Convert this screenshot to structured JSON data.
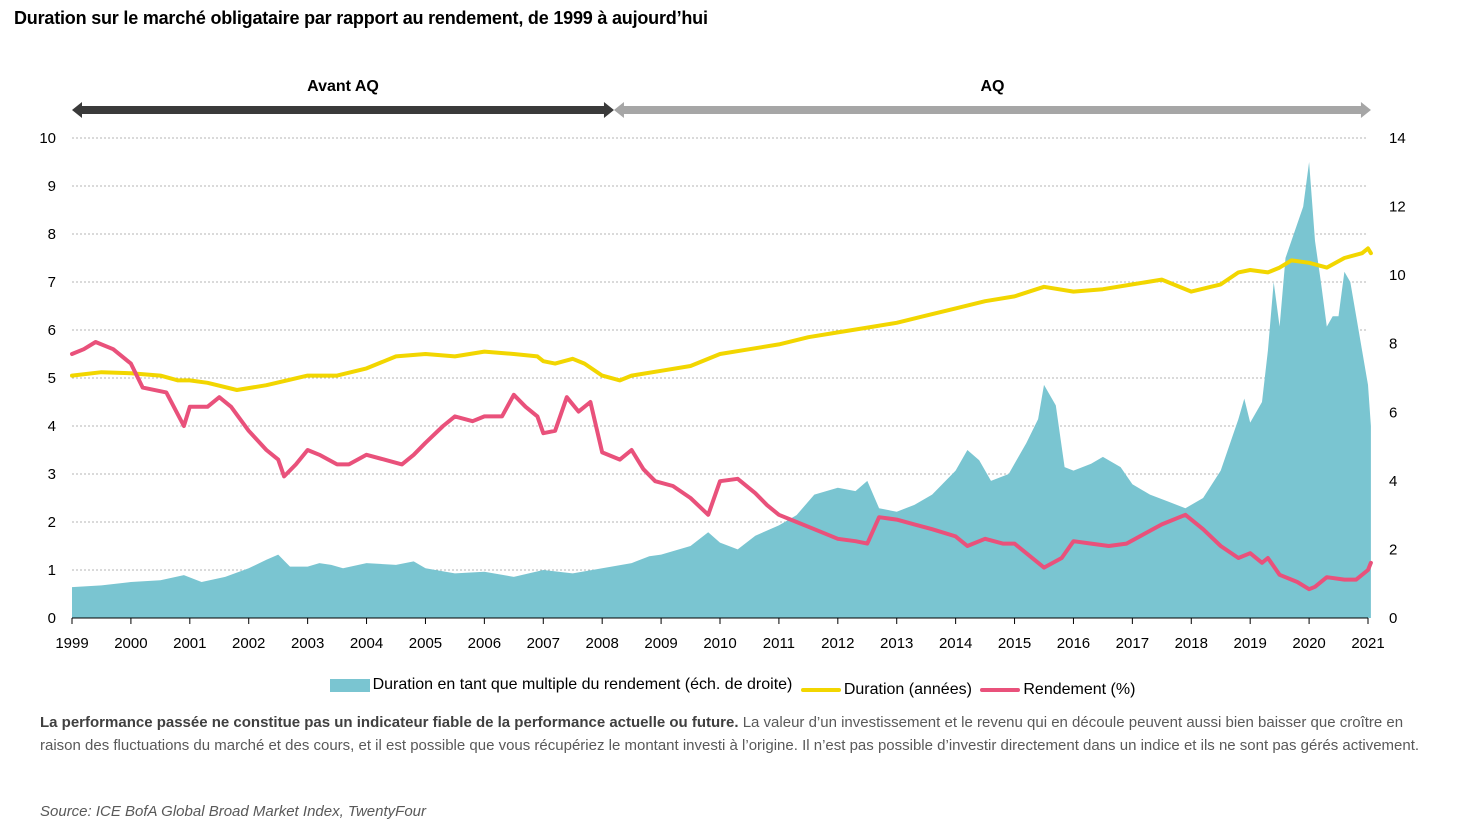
{
  "title": "Duration sur le marché obligataire par rapport au rendement, de 1999 à aujourd’hui",
  "eras": [
    {
      "label": "Avant AQ",
      "start": 1999.0,
      "end": 2008.2,
      "color": "#3a3a3a"
    },
    {
      "label": "AQ",
      "start": 2008.2,
      "end": 2021.05,
      "color": "#a6a6a6"
    }
  ],
  "legend": [
    {
      "label": "Duration en tant que multiple du rendement (éch. de droite)",
      "kind": "area",
      "color": "#7ac5d1"
    },
    {
      "label": "Duration (années)",
      "kind": "line",
      "color": "#f2d600"
    },
    {
      "label": "Rendement (%)",
      "kind": "line",
      "color": "#e9517b"
    }
  ],
  "disclaimer": {
    "bold": "La performance passée ne constitue pas un indicateur fiable de la performance actuelle ou future.",
    "text": " La valeur d’un investissement et le revenu qui en découle peuvent aussi bien baisser que croître en raison des fluctuations du marché et des cours, et il est possible que vous récupériez le montant investi à l’origine. Il n’est pas possible d’investir directement dans un indice et ils ne sont pas gérés activement."
  },
  "source": "Source: ICE BofA Global Broad Market Index, TwentyFour",
  "chart_data": {
    "type": "line",
    "x_ticks": [
      "1999",
      "2000",
      "2001",
      "2002",
      "2003",
      "2004",
      "2005",
      "2006",
      "2007",
      "2008",
      "2009",
      "2010",
      "2011",
      "2012",
      "2013",
      "2014",
      "2015",
      "2016",
      "2017",
      "2018",
      "2019",
      "2020",
      "2021"
    ],
    "y_left": {
      "min": 0,
      "max": 10,
      "ticks": [
        0,
        1,
        2,
        3,
        4,
        5,
        6,
        7,
        8,
        9,
        10
      ]
    },
    "y_right": {
      "min": 0,
      "max": 14,
      "ticks": [
        0,
        2,
        4,
        6,
        8,
        10,
        12,
        14
      ]
    },
    "grid": true,
    "legend_position": "bottom",
    "series": [
      {
        "name": "Duration en tant que multiple du rendement (éch. de droite)",
        "type": "area",
        "axis": "right",
        "color": "#7ac5d1",
        "points": [
          [
            1999.0,
            0.9
          ],
          [
            1999.5,
            0.95
          ],
          [
            2000.0,
            1.05
          ],
          [
            2000.5,
            1.1
          ],
          [
            2000.9,
            1.25
          ],
          [
            2001.2,
            1.05
          ],
          [
            2001.6,
            1.2
          ],
          [
            2002.0,
            1.45
          ],
          [
            2002.3,
            1.7
          ],
          [
            2002.5,
            1.85
          ],
          [
            2002.7,
            1.5
          ],
          [
            2003.0,
            1.5
          ],
          [
            2003.2,
            1.6
          ],
          [
            2003.4,
            1.55
          ],
          [
            2003.6,
            1.45
          ],
          [
            2004.0,
            1.6
          ],
          [
            2004.5,
            1.55
          ],
          [
            2004.8,
            1.65
          ],
          [
            2005.0,
            1.45
          ],
          [
            2005.5,
            1.3
          ],
          [
            2006.0,
            1.35
          ],
          [
            2006.5,
            1.2
          ],
          [
            2007.0,
            1.4
          ],
          [
            2007.5,
            1.3
          ],
          [
            2008.0,
            1.45
          ],
          [
            2008.5,
            1.6
          ],
          [
            2008.8,
            1.8
          ],
          [
            2009.0,
            1.85
          ],
          [
            2009.5,
            2.1
          ],
          [
            2009.8,
            2.5
          ],
          [
            2010.0,
            2.2
          ],
          [
            2010.3,
            2.0
          ],
          [
            2010.6,
            2.4
          ],
          [
            2011.0,
            2.7
          ],
          [
            2011.3,
            3.0
          ],
          [
            2011.6,
            3.6
          ],
          [
            2012.0,
            3.8
          ],
          [
            2012.3,
            3.7
          ],
          [
            2012.5,
            4.0
          ],
          [
            2012.7,
            3.2
          ],
          [
            2013.0,
            3.1
          ],
          [
            2013.3,
            3.3
          ],
          [
            2013.6,
            3.6
          ],
          [
            2014.0,
            4.3
          ],
          [
            2014.2,
            4.9
          ],
          [
            2014.4,
            4.6
          ],
          [
            2014.6,
            4.0
          ],
          [
            2014.9,
            4.2
          ],
          [
            2015.0,
            4.5
          ],
          [
            2015.2,
            5.1
          ],
          [
            2015.4,
            5.8
          ],
          [
            2015.5,
            6.8
          ],
          [
            2015.7,
            6.2
          ],
          [
            2015.85,
            4.4
          ],
          [
            2016.0,
            4.3
          ],
          [
            2016.3,
            4.5
          ],
          [
            2016.5,
            4.7
          ],
          [
            2016.8,
            4.4
          ],
          [
            2017.0,
            3.9
          ],
          [
            2017.3,
            3.6
          ],
          [
            2017.6,
            3.4
          ],
          [
            2017.9,
            3.2
          ],
          [
            2018.2,
            3.5
          ],
          [
            2018.5,
            4.3
          ],
          [
            2018.8,
            5.8
          ],
          [
            2018.9,
            6.4
          ],
          [
            2019.0,
            5.7
          ],
          [
            2019.2,
            6.3
          ],
          [
            2019.3,
            7.8
          ],
          [
            2019.4,
            9.8
          ],
          [
            2019.5,
            8.5
          ],
          [
            2019.6,
            10.5
          ],
          [
            2019.7,
            11.0
          ],
          [
            2019.8,
            11.5
          ],
          [
            2019.9,
            12.0
          ],
          [
            2020.0,
            13.3
          ],
          [
            2020.1,
            11.0
          ],
          [
            2020.2,
            9.8
          ],
          [
            2020.3,
            8.5
          ],
          [
            2020.4,
            8.8
          ],
          [
            2020.5,
            8.8
          ],
          [
            2020.6,
            10.1
          ],
          [
            2020.7,
            9.8
          ],
          [
            2020.8,
            8.8
          ],
          [
            2020.9,
            7.8
          ],
          [
            2021.0,
            6.8
          ],
          [
            2021.05,
            5.6
          ]
        ]
      },
      {
        "name": "Duration (années)",
        "type": "line",
        "axis": "left",
        "color": "#f2d600",
        "points": [
          [
            1999.0,
            5.05
          ],
          [
            1999.5,
            5.12
          ],
          [
            2000.0,
            5.1
          ],
          [
            2000.5,
            5.05
          ],
          [
            2000.8,
            4.95
          ],
          [
            2001.0,
            4.95
          ],
          [
            2001.3,
            4.9
          ],
          [
            2001.8,
            4.75
          ],
          [
            2002.3,
            4.85
          ],
          [
            2003.0,
            5.05
          ],
          [
            2003.5,
            5.05
          ],
          [
            2004.0,
            5.2
          ],
          [
            2004.5,
            5.45
          ],
          [
            2005.0,
            5.5
          ],
          [
            2005.5,
            5.45
          ],
          [
            2006.0,
            5.55
          ],
          [
            2006.5,
            5.5
          ],
          [
            2006.9,
            5.45
          ],
          [
            2007.0,
            5.35
          ],
          [
            2007.2,
            5.3
          ],
          [
            2007.5,
            5.4
          ],
          [
            2007.7,
            5.3
          ],
          [
            2008.0,
            5.05
          ],
          [
            2008.3,
            4.95
          ],
          [
            2008.5,
            5.05
          ],
          [
            2009.0,
            5.15
          ],
          [
            2009.5,
            5.25
          ],
          [
            2010.0,
            5.5
          ],
          [
            2010.5,
            5.6
          ],
          [
            2011.0,
            5.7
          ],
          [
            2011.5,
            5.85
          ],
          [
            2012.0,
            5.95
          ],
          [
            2012.5,
            6.05
          ],
          [
            2013.0,
            6.15
          ],
          [
            2013.5,
            6.3
          ],
          [
            2014.0,
            6.45
          ],
          [
            2014.5,
            6.6
          ],
          [
            2015.0,
            6.7
          ],
          [
            2015.5,
            6.9
          ],
          [
            2016.0,
            6.8
          ],
          [
            2016.5,
            6.85
          ],
          [
            2017.0,
            6.95
          ],
          [
            2017.5,
            7.05
          ],
          [
            2018.0,
            6.8
          ],
          [
            2018.5,
            6.95
          ],
          [
            2018.8,
            7.2
          ],
          [
            2019.0,
            7.25
          ],
          [
            2019.3,
            7.2
          ],
          [
            2019.5,
            7.3
          ],
          [
            2019.7,
            7.45
          ],
          [
            2020.0,
            7.4
          ],
          [
            2020.3,
            7.3
          ],
          [
            2020.6,
            7.5
          ],
          [
            2020.9,
            7.6
          ],
          [
            2021.0,
            7.7
          ],
          [
            2021.05,
            7.6
          ]
        ]
      },
      {
        "name": "Rendement (%)",
        "type": "line",
        "axis": "left",
        "color": "#e9517b",
        "points": [
          [
            1999.0,
            5.5
          ],
          [
            1999.2,
            5.6
          ],
          [
            1999.4,
            5.75
          ],
          [
            1999.7,
            5.6
          ],
          [
            2000.0,
            5.3
          ],
          [
            2000.2,
            4.8
          ],
          [
            2000.6,
            4.7
          ],
          [
            2000.9,
            4.0
          ],
          [
            2001.0,
            4.4
          ],
          [
            2001.3,
            4.4
          ],
          [
            2001.5,
            4.6
          ],
          [
            2001.7,
            4.4
          ],
          [
            2002.0,
            3.9
          ],
          [
            2002.3,
            3.5
          ],
          [
            2002.5,
            3.3
          ],
          [
            2002.6,
            2.95
          ],
          [
            2002.8,
            3.2
          ],
          [
            2003.0,
            3.5
          ],
          [
            2003.2,
            3.4
          ],
          [
            2003.5,
            3.2
          ],
          [
            2003.7,
            3.2
          ],
          [
            2004.0,
            3.4
          ],
          [
            2004.3,
            3.3
          ],
          [
            2004.6,
            3.2
          ],
          [
            2004.8,
            3.4
          ],
          [
            2005.0,
            3.65
          ],
          [
            2005.3,
            4.0
          ],
          [
            2005.5,
            4.2
          ],
          [
            2005.8,
            4.1
          ],
          [
            2006.0,
            4.2
          ],
          [
            2006.3,
            4.2
          ],
          [
            2006.5,
            4.65
          ],
          [
            2006.7,
            4.4
          ],
          [
            2006.9,
            4.2
          ],
          [
            2007.0,
            3.85
          ],
          [
            2007.2,
            3.9
          ],
          [
            2007.4,
            4.6
          ],
          [
            2007.6,
            4.3
          ],
          [
            2007.8,
            4.5
          ],
          [
            2008.0,
            3.45
          ],
          [
            2008.3,
            3.3
          ],
          [
            2008.5,
            3.5
          ],
          [
            2008.7,
            3.1
          ],
          [
            2008.9,
            2.85
          ],
          [
            2009.2,
            2.75
          ],
          [
            2009.5,
            2.5
          ],
          [
            2009.8,
            2.15
          ],
          [
            2010.0,
            2.85
          ],
          [
            2010.3,
            2.9
          ],
          [
            2010.6,
            2.6
          ],
          [
            2010.8,
            2.35
          ],
          [
            2011.0,
            2.15
          ],
          [
            2011.3,
            2.0
          ],
          [
            2011.6,
            1.85
          ],
          [
            2012.0,
            1.65
          ],
          [
            2012.3,
            1.6
          ],
          [
            2012.5,
            1.55
          ],
          [
            2012.7,
            2.1
          ],
          [
            2013.0,
            2.05
          ],
          [
            2013.3,
            1.95
          ],
          [
            2013.6,
            1.85
          ],
          [
            2014.0,
            1.7
          ],
          [
            2014.2,
            1.5
          ],
          [
            2014.5,
            1.65
          ],
          [
            2014.8,
            1.55
          ],
          [
            2015.0,
            1.55
          ],
          [
            2015.2,
            1.35
          ],
          [
            2015.5,
            1.05
          ],
          [
            2015.8,
            1.25
          ],
          [
            2016.0,
            1.6
          ],
          [
            2016.3,
            1.55
          ],
          [
            2016.6,
            1.5
          ],
          [
            2016.9,
            1.55
          ],
          [
            2017.2,
            1.75
          ],
          [
            2017.5,
            1.95
          ],
          [
            2017.9,
            2.15
          ],
          [
            2018.2,
            1.85
          ],
          [
            2018.5,
            1.5
          ],
          [
            2018.8,
            1.25
          ],
          [
            2019.0,
            1.35
          ],
          [
            2019.2,
            1.15
          ],
          [
            2019.3,
            1.25
          ],
          [
            2019.5,
            0.9
          ],
          [
            2019.8,
            0.75
          ],
          [
            2020.0,
            0.6
          ],
          [
            2020.1,
            0.65
          ],
          [
            2020.3,
            0.85
          ],
          [
            2020.6,
            0.8
          ],
          [
            2020.8,
            0.8
          ],
          [
            2021.0,
            1.0
          ],
          [
            2021.05,
            1.15
          ]
        ]
      }
    ]
  }
}
